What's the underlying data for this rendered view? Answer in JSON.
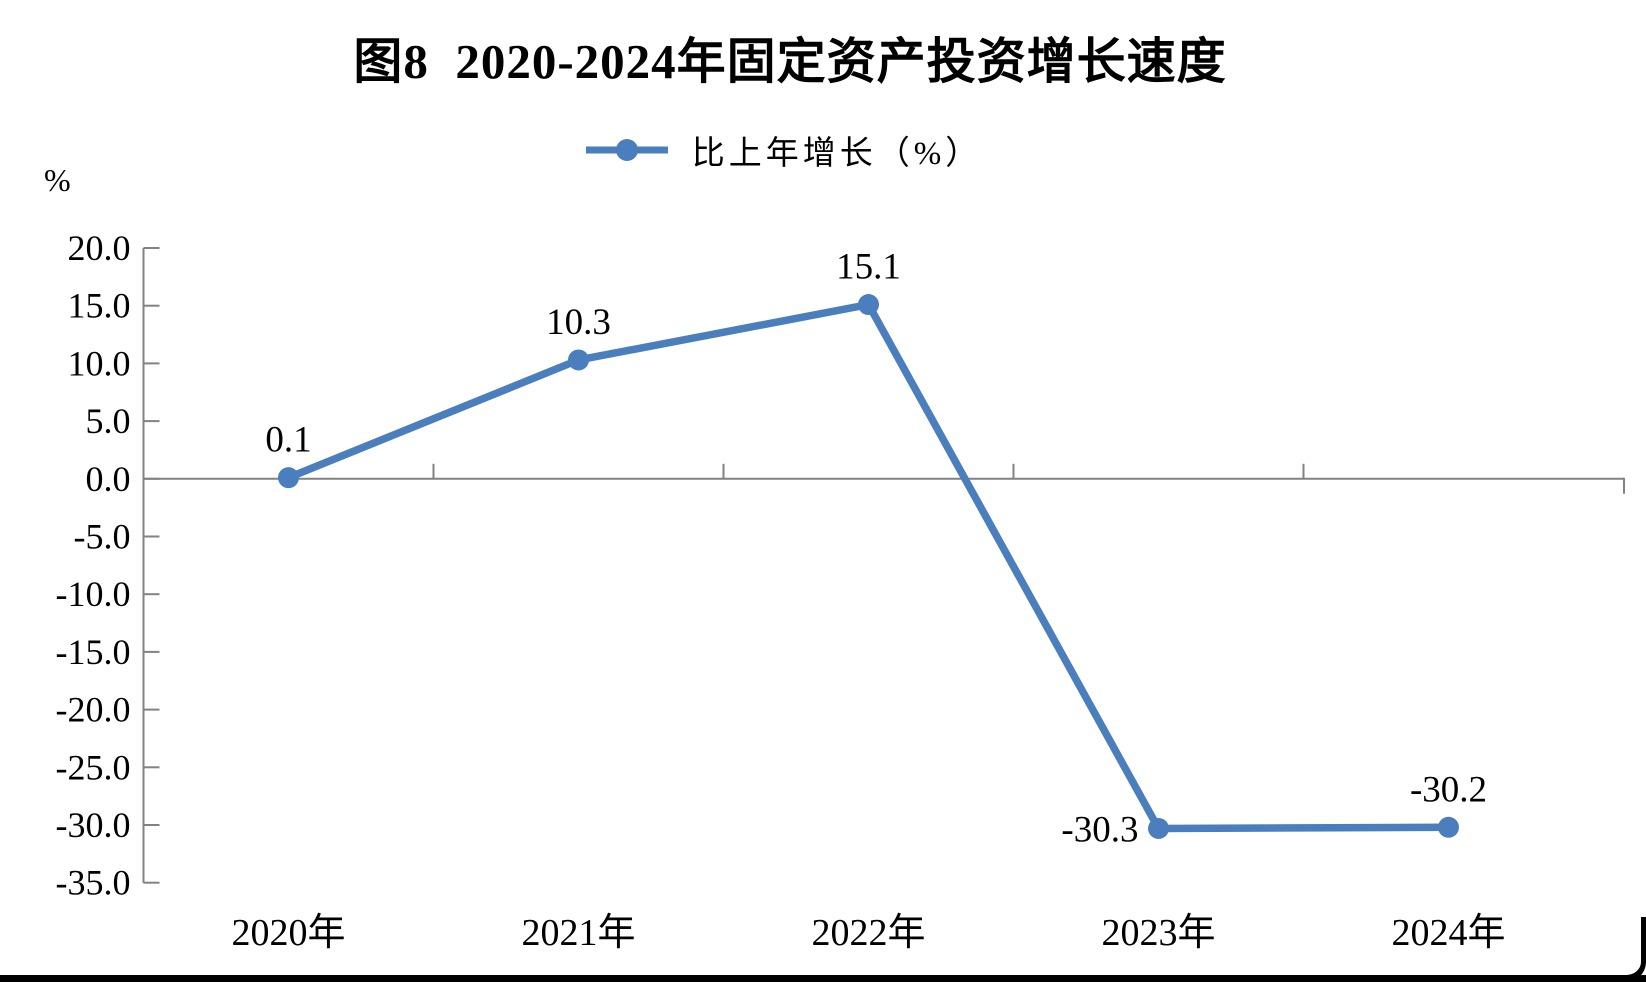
{
  "title": "图8  2020-2024年固定资产投资增长速度",
  "legend": {
    "label": "比上年增长（%）"
  },
  "y_axis_unit": "%",
  "colors": {
    "line": "#4a7ebc",
    "axis": "#828282",
    "text": "#000000"
  },
  "chart_data": {
    "type": "line",
    "title": "图8 2020-2024年固定资产投资增长速度",
    "categories": [
      "2020年",
      "2021年",
      "2022年",
      "2023年",
      "2024年"
    ],
    "series": [
      {
        "name": "比上年增长（%）",
        "values": [
          0.1,
          10.3,
          15.1,
          -30.3,
          -30.2
        ]
      }
    ],
    "point_labels": [
      "0.1",
      "10.3",
      "15.1",
      "-30.3",
      "-30.2"
    ],
    "label_positions": [
      "above",
      "above",
      "above",
      "left",
      "above"
    ],
    "ylabel": "%",
    "ylim": [
      -35,
      20
    ],
    "ytick_step": 5,
    "grid": false,
    "legend_position": "top",
    "marker": "circle"
  }
}
